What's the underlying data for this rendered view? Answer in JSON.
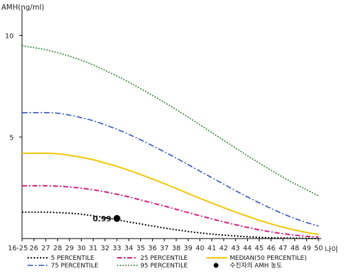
{
  "chart_data": {
    "type": "line",
    "ylabel": "AMH(ng/ml)",
    "xlabel": "나이",
    "ylim": [
      0,
      11
    ],
    "y_ticks": [
      5,
      10
    ],
    "categories": [
      "16-25",
      "26",
      "27",
      "28",
      "29",
      "30",
      "31",
      "32",
      "33",
      "34",
      "35",
      "36",
      "37",
      "38",
      "39",
      "40",
      "41",
      "42",
      "43",
      "44",
      "45",
      "46",
      "47",
      "48",
      "49",
      "50"
    ],
    "grid": false,
    "legend_position": "bottom",
    "series": [
      {
        "name": "5 PERCENTILE",
        "color": "#000000",
        "dash": "2,2.5",
        "width": 2,
        "values": [
          1.3,
          1.3,
          1.3,
          1.28,
          1.25,
          1.2,
          1.12,
          1.03,
          0.93,
          0.82,
          0.72,
          0.62,
          0.52,
          0.43,
          0.35,
          0.28,
          0.22,
          0.17,
          0.13,
          0.09,
          0.06,
          0.04,
          0.03,
          0.02,
          0.01,
          0.0
        ]
      },
      {
        "name": "25 PERCENTILE",
        "color": "#e0147a",
        "dash": "7,3,2,3",
        "width": 2,
        "values": [
          2.6,
          2.6,
          2.6,
          2.58,
          2.54,
          2.48,
          2.4,
          2.3,
          2.18,
          2.05,
          1.9,
          1.75,
          1.6,
          1.44,
          1.28,
          1.12,
          0.97,
          0.82,
          0.68,
          0.55,
          0.43,
          0.33,
          0.24,
          0.17,
          0.11,
          0.07
        ]
      },
      {
        "name": "MEDIAN(50 PERCENTILE)",
        "color": "#f2c500",
        "dash": "",
        "width": 2,
        "values": [
          4.2,
          4.2,
          4.2,
          4.17,
          4.1,
          4.0,
          3.88,
          3.72,
          3.55,
          3.36,
          3.15,
          2.93,
          2.7,
          2.46,
          2.22,
          1.98,
          1.75,
          1.52,
          1.3,
          1.1,
          0.9,
          0.72,
          0.56,
          0.42,
          0.3,
          0.2
        ]
      },
      {
        "name": "75 PERCENTILE",
        "color": "#2f4fc8",
        "dash": "8,3,2,3",
        "width": 1.6,
        "values": [
          6.2,
          6.2,
          6.2,
          6.17,
          6.08,
          5.95,
          5.8,
          5.6,
          5.38,
          5.13,
          4.86,
          4.57,
          4.27,
          3.96,
          3.64,
          3.32,
          3.0,
          2.68,
          2.36,
          2.05,
          1.76,
          1.48,
          1.22,
          0.99,
          0.79,
          0.62
        ]
      },
      {
        "name": "95 PERCENTILE",
        "color": "#2e7d32",
        "dash": "2,2",
        "width": 1.6,
        "values": [
          9.5,
          9.4,
          9.3,
          9.15,
          8.98,
          8.78,
          8.55,
          8.28,
          8.0,
          7.7,
          7.38,
          7.05,
          6.7,
          6.35,
          5.98,
          5.6,
          5.22,
          4.84,
          4.46,
          4.08,
          3.72,
          3.36,
          3.02,
          2.7,
          2.4,
          2.1
        ]
      }
    ],
    "highlight_point": {
      "name": "수진자의 AMH 농도",
      "category": "33",
      "value": 0.99,
      "label": "0.99"
    }
  }
}
